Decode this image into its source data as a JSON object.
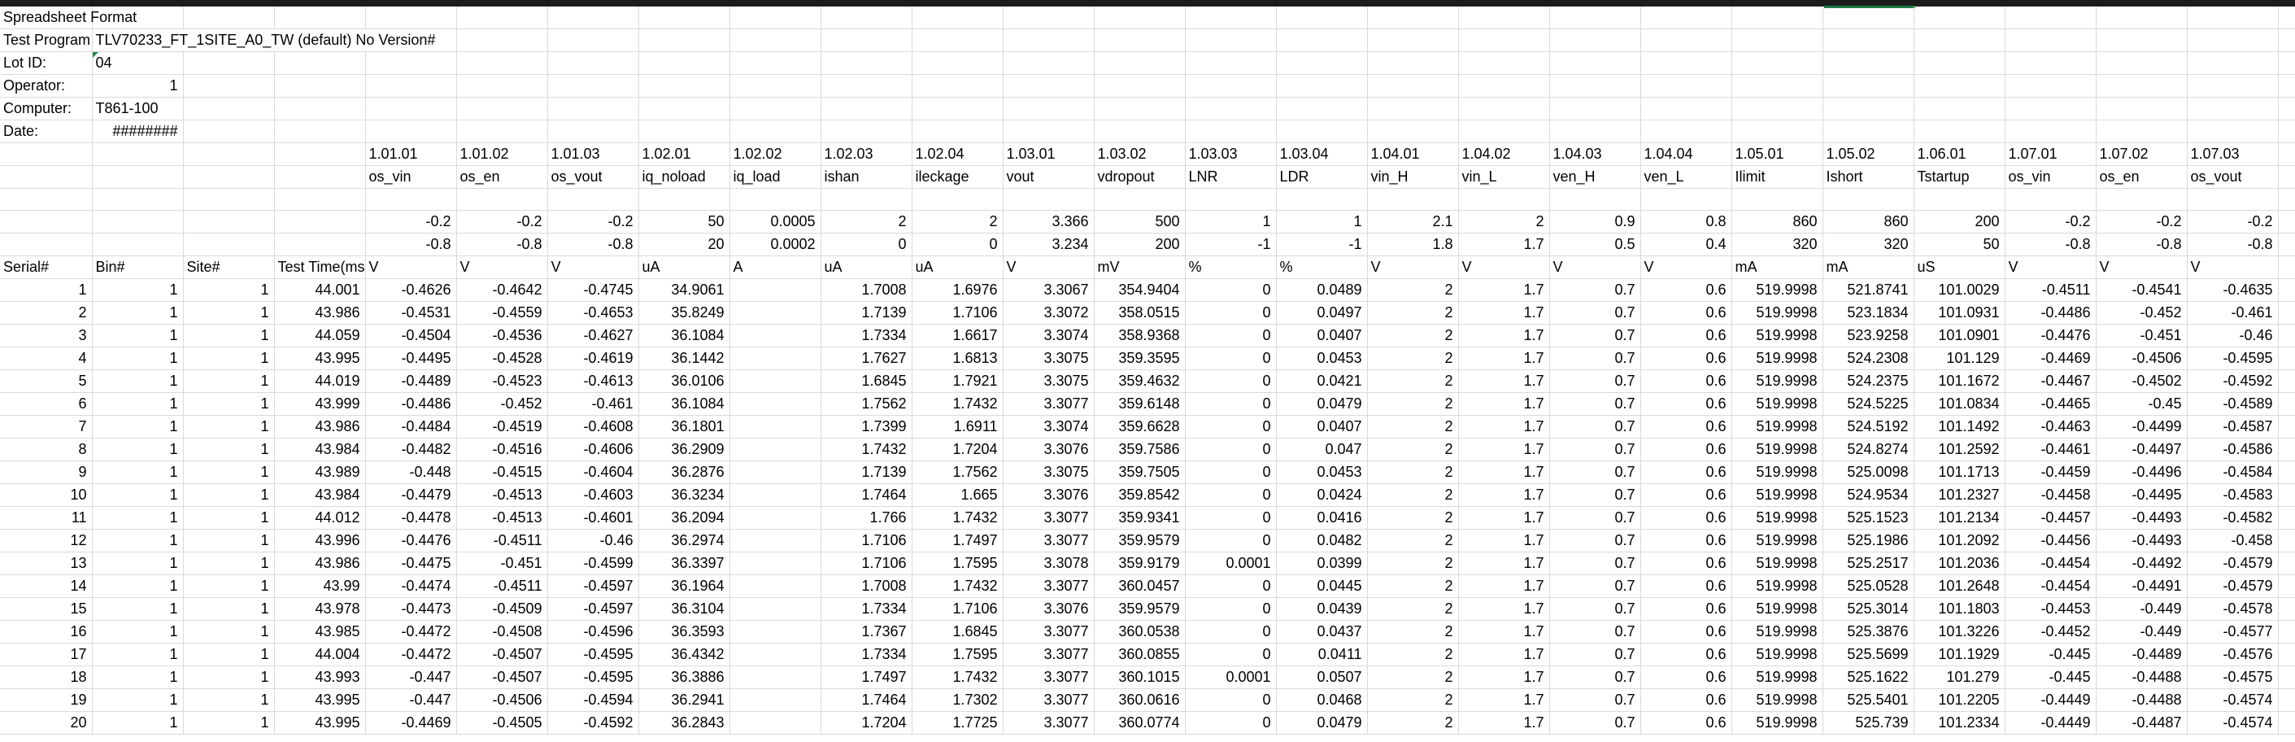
{
  "spreadsheet": {
    "column_count": 26,
    "meta": {
      "title": "Spreadsheet Format",
      "program_label": "Test Program",
      "program_value": "TLV70233_FT_1SITE_A0_TW (default) No Version#",
      "lot_label": "Lot ID:",
      "lot_value": "04",
      "operator_label": "Operator:",
      "operator_value": "1",
      "computer_label": "Computer:",
      "computer_value": "T861-100",
      "date_label": "Date:",
      "date_value": "########"
    },
    "test_numbers": [
      "1.01.01",
      "1.01.02",
      "1.01.03",
      "1.02.01",
      "1.02.02",
      "1.02.03",
      "1.02.04",
      "1.03.01",
      "1.03.02",
      "1.03.03",
      "1.03.04",
      "1.04.01",
      "1.04.02",
      "1.04.03",
      "1.04.04",
      "1.05.01",
      "1.05.02",
      "1.06.01",
      "1.07.01",
      "1.07.02",
      "1.07.03"
    ],
    "test_names": [
      "os_vin",
      "os_en",
      "os_vout",
      "iq_noload",
      "iq_load",
      "ishan",
      "ileckage",
      "vout",
      "vdropout",
      "LNR",
      "LDR",
      "vin_H",
      "vin_L",
      "ven_H",
      "ven_L",
      "Ilimit",
      "Ishort",
      "Tstartup",
      "os_vin",
      "os_en",
      "os_vout"
    ],
    "upper_limits": [
      "-0.2",
      "-0.2",
      "-0.2",
      "50",
      "0.0005",
      "2",
      "2",
      "3.366",
      "500",
      "1",
      "1",
      "2.1",
      "2",
      "0.9",
      "0.8",
      "860",
      "860",
      "200",
      "-0.2",
      "-0.2",
      "-0.2"
    ],
    "lower_limits": [
      "-0.8",
      "-0.8",
      "-0.8",
      "20",
      "0.0002",
      "0",
      "0",
      "3.234",
      "200",
      "-1",
      "-1",
      "1.8",
      "1.7",
      "0.5",
      "0.4",
      "320",
      "320",
      "50",
      "-0.8",
      "-0.8",
      "-0.8"
    ],
    "header_labels": [
      "Serial#",
      "Bin#",
      "Site#",
      "Test Time(ms)"
    ],
    "units": [
      "V",
      "V",
      "V",
      "uA",
      "A",
      "uA",
      "uA",
      "V",
      "mV",
      "%",
      "%",
      "V",
      "V",
      "V",
      "V",
      "mA",
      "mA",
      "uS",
      "V",
      "V",
      "V"
    ],
    "rows": [
      [
        "1",
        "1",
        "1",
        "44.001",
        "-0.4626",
        "-0.4642",
        "-0.4745",
        "34.9061",
        "",
        "1.7008",
        "1.6976",
        "3.3067",
        "354.9404",
        "0",
        "0.0489",
        "2",
        "1.7",
        "0.7",
        "0.6",
        "519.9998",
        "521.8741",
        "101.0029",
        "-0.4511",
        "-0.4541",
        "-0.4635"
      ],
      [
        "2",
        "1",
        "1",
        "43.986",
        "-0.4531",
        "-0.4559",
        "-0.4653",
        "35.8249",
        "",
        "1.7139",
        "1.7106",
        "3.3072",
        "358.0515",
        "0",
        "0.0497",
        "2",
        "1.7",
        "0.7",
        "0.6",
        "519.9998",
        "523.1834",
        "101.0931",
        "-0.4486",
        "-0.452",
        "-0.461"
      ],
      [
        "3",
        "1",
        "1",
        "44.059",
        "-0.4504",
        "-0.4536",
        "-0.4627",
        "36.1084",
        "",
        "1.7334",
        "1.6617",
        "3.3074",
        "358.9368",
        "0",
        "0.0407",
        "2",
        "1.7",
        "0.7",
        "0.6",
        "519.9998",
        "523.9258",
        "101.0901",
        "-0.4476",
        "-0.451",
        "-0.46"
      ],
      [
        "4",
        "1",
        "1",
        "43.995",
        "-0.4495",
        "-0.4528",
        "-0.4619",
        "36.1442",
        "",
        "1.7627",
        "1.6813",
        "3.3075",
        "359.3595",
        "0",
        "0.0453",
        "2",
        "1.7",
        "0.7",
        "0.6",
        "519.9998",
        "524.2308",
        "101.129",
        "-0.4469",
        "-0.4506",
        "-0.4595"
      ],
      [
        "5",
        "1",
        "1",
        "44.019",
        "-0.4489",
        "-0.4523",
        "-0.4613",
        "36.0106",
        "",
        "1.6845",
        "1.7921",
        "3.3075",
        "359.4632",
        "0",
        "0.0421",
        "2",
        "1.7",
        "0.7",
        "0.6",
        "519.9998",
        "524.2375",
        "101.1672",
        "-0.4467",
        "-0.4502",
        "-0.4592"
      ],
      [
        "6",
        "1",
        "1",
        "43.999",
        "-0.4486",
        "-0.452",
        "-0.461",
        "36.1084",
        "",
        "1.7562",
        "1.7432",
        "3.3077",
        "359.6148",
        "0",
        "0.0479",
        "2",
        "1.7",
        "0.7",
        "0.6",
        "519.9998",
        "524.5225",
        "101.0834",
        "-0.4465",
        "-0.45",
        "-0.4589"
      ],
      [
        "7",
        "1",
        "1",
        "43.986",
        "-0.4484",
        "-0.4519",
        "-0.4608",
        "36.1801",
        "",
        "1.7399",
        "1.6911",
        "3.3074",
        "359.6628",
        "0",
        "0.0407",
        "2",
        "1.7",
        "0.7",
        "0.6",
        "519.9998",
        "524.5192",
        "101.1492",
        "-0.4463",
        "-0.4499",
        "-0.4587"
      ],
      [
        "8",
        "1",
        "1",
        "43.984",
        "-0.4482",
        "-0.4516",
        "-0.4606",
        "36.2909",
        "",
        "1.7432",
        "1.7204",
        "3.3076",
        "359.7586",
        "0",
        "0.047",
        "2",
        "1.7",
        "0.7",
        "0.6",
        "519.9998",
        "524.8274",
        "101.2592",
        "-0.4461",
        "-0.4497",
        "-0.4586"
      ],
      [
        "9",
        "1",
        "1",
        "43.989",
        "-0.448",
        "-0.4515",
        "-0.4604",
        "36.2876",
        "",
        "1.7139",
        "1.7562",
        "3.3075",
        "359.7505",
        "0",
        "0.0453",
        "2",
        "1.7",
        "0.7",
        "0.6",
        "519.9998",
        "525.0098",
        "101.1713",
        "-0.4459",
        "-0.4496",
        "-0.4584"
      ],
      [
        "10",
        "1",
        "1",
        "43.984",
        "-0.4479",
        "-0.4513",
        "-0.4603",
        "36.3234",
        "",
        "1.7464",
        "1.665",
        "3.3076",
        "359.8542",
        "0",
        "0.0424",
        "2",
        "1.7",
        "0.7",
        "0.6",
        "519.9998",
        "524.9534",
        "101.2327",
        "-0.4458",
        "-0.4495",
        "-0.4583"
      ],
      [
        "11",
        "1",
        "1",
        "44.012",
        "-0.4478",
        "-0.4513",
        "-0.4601",
        "36.2094",
        "",
        "1.766",
        "1.7432",
        "3.3077",
        "359.9341",
        "0",
        "0.0416",
        "2",
        "1.7",
        "0.7",
        "0.6",
        "519.9998",
        "525.1523",
        "101.2134",
        "-0.4457",
        "-0.4493",
        "-0.4582"
      ],
      [
        "12",
        "1",
        "1",
        "43.996",
        "-0.4476",
        "-0.4511",
        "-0.46",
        "36.2974",
        "",
        "1.7106",
        "1.7497",
        "3.3077",
        "359.9579",
        "0",
        "0.0482",
        "2",
        "1.7",
        "0.7",
        "0.6",
        "519.9998",
        "525.1986",
        "101.2092",
        "-0.4456",
        "-0.4493",
        "-0.458"
      ],
      [
        "13",
        "1",
        "1",
        "43.986",
        "-0.4475",
        "-0.451",
        "-0.4599",
        "36.3397",
        "",
        "1.7106",
        "1.7595",
        "3.3078",
        "359.9179",
        "0.0001",
        "0.0399",
        "2",
        "1.7",
        "0.7",
        "0.6",
        "519.9998",
        "525.2517",
        "101.2036",
        "-0.4454",
        "-0.4492",
        "-0.4579"
      ],
      [
        "14",
        "1",
        "1",
        "43.99",
        "-0.4474",
        "-0.4511",
        "-0.4597",
        "36.1964",
        "",
        "1.7008",
        "1.7432",
        "3.3077",
        "360.0457",
        "0",
        "0.0445",
        "2",
        "1.7",
        "0.7",
        "0.6",
        "519.9998",
        "525.0528",
        "101.2648",
        "-0.4454",
        "-0.4491",
        "-0.4579"
      ],
      [
        "15",
        "1",
        "1",
        "43.978",
        "-0.4473",
        "-0.4509",
        "-0.4597",
        "36.3104",
        "",
        "1.7334",
        "1.7106",
        "3.3076",
        "359.9579",
        "0",
        "0.0439",
        "2",
        "1.7",
        "0.7",
        "0.6",
        "519.9998",
        "525.3014",
        "101.1803",
        "-0.4453",
        "-0.449",
        "-0.4578"
      ],
      [
        "16",
        "1",
        "1",
        "43.985",
        "-0.4472",
        "-0.4508",
        "-0.4596",
        "36.3593",
        "",
        "1.7367",
        "1.6845",
        "3.3077",
        "360.0538",
        "0",
        "0.0437",
        "2",
        "1.7",
        "0.7",
        "0.6",
        "519.9998",
        "525.3876",
        "101.3226",
        "-0.4452",
        "-0.449",
        "-0.4577"
      ],
      [
        "17",
        "1",
        "1",
        "44.004",
        "-0.4472",
        "-0.4507",
        "-0.4595",
        "36.4342",
        "",
        "1.7334",
        "1.7595",
        "3.3077",
        "360.0855",
        "0",
        "0.0411",
        "2",
        "1.7",
        "0.7",
        "0.6",
        "519.9998",
        "525.5699",
        "101.1929",
        "-0.445",
        "-0.4489",
        "-0.4576"
      ],
      [
        "18",
        "1",
        "1",
        "43.993",
        "-0.447",
        "-0.4507",
        "-0.4595",
        "36.3886",
        "",
        "1.7497",
        "1.7432",
        "3.3077",
        "360.1015",
        "0.0001",
        "0.0507",
        "2",
        "1.7",
        "0.7",
        "0.6",
        "519.9998",
        "525.1622",
        "101.279",
        "-0.445",
        "-0.4488",
        "-0.4575"
      ],
      [
        "19",
        "1",
        "1",
        "43.995",
        "-0.447",
        "-0.4506",
        "-0.4594",
        "36.2941",
        "",
        "1.7464",
        "1.7302",
        "3.3077",
        "360.0616",
        "0",
        "0.0468",
        "2",
        "1.7",
        "0.7",
        "0.6",
        "519.9998",
        "525.5401",
        "101.2205",
        "-0.4449",
        "-0.4488",
        "-0.4574"
      ],
      [
        "20",
        "1",
        "1",
        "43.995",
        "-0.4469",
        "-0.4505",
        "-0.4592",
        "36.2843",
        "",
        "1.7204",
        "1.7725",
        "3.3077",
        "360.0774",
        "0",
        "0.0479",
        "2",
        "1.7",
        "0.7",
        "0.6",
        "519.9998",
        "525.739",
        "101.2334",
        "-0.4449",
        "-0.4487",
        "-0.4574"
      ]
    ]
  }
}
